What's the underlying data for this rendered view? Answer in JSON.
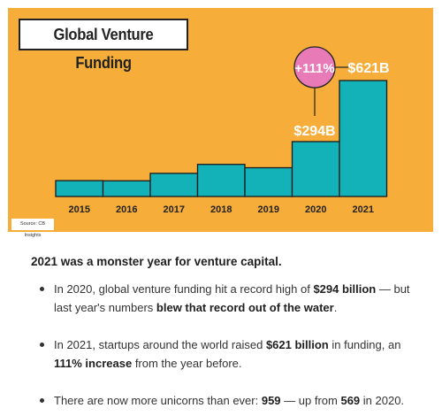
{
  "chart_data": {
    "type": "bar",
    "title": "Global Venture Funding",
    "categories": [
      "2015",
      "2016",
      "2017",
      "2018",
      "2019",
      "2020",
      "2021"
    ],
    "values": [
      85,
      84,
      124,
      172,
      154,
      294,
      621
    ],
    "unit": "$B",
    "annotations": {
      "value_2020": "$294B",
      "value_2021": "$621B",
      "growth": "+111%"
    },
    "source": "Source: CB Insights",
    "colors": {
      "background": "#f6ad3a",
      "bar": "#12b2b8",
      "bar_stroke": "#1a1a1a",
      "growth_circle": "#e97ab8"
    }
  },
  "article": {
    "headline": "2021 was a monster year for venture capital.",
    "bullets": [
      {
        "t1": "In 2020, global venture funding hit a record high of ",
        "b1": "$294 billion",
        "t2": " — but last year's numbers ",
        "b2": "blew that record out of the water",
        "t3": "."
      },
      {
        "t1": "In 2021, startups around the world raised ",
        "b1": "$621 billion",
        "t2": " in funding, an ",
        "b2": "111% increase",
        "t3": " from the year before."
      },
      {
        "t1": "There are now more unicorns than ever: ",
        "b1": "959",
        "t2": " — up from ",
        "b2": "569",
        "t3": " in 2020."
      }
    ]
  }
}
